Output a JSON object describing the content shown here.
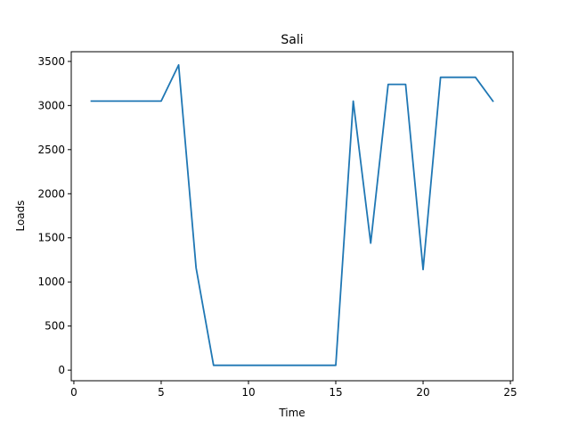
{
  "chart_data": {
    "type": "line",
    "title": "Sali",
    "xlabel": "Time",
    "ylabel": "Loads",
    "xlim": [
      -0.15,
      25.15
    ],
    "ylim": [
      -120,
      3610
    ],
    "xticks": [
      0,
      5,
      10,
      15,
      20,
      25
    ],
    "yticks": [
      0,
      500,
      1000,
      1500,
      2000,
      2500,
      3000,
      3500
    ],
    "grid": false,
    "series": [
      {
        "color": "#1f77b4",
        "x": [
          1,
          2,
          3,
          4,
          5,
          6,
          7,
          8,
          9,
          10,
          11,
          12,
          13,
          14,
          15,
          16,
          17,
          18,
          19,
          20,
          21,
          22,
          23,
          24
        ],
        "y": [
          3050,
          3050,
          3050,
          3050,
          3050,
          3460,
          1160,
          55,
          55,
          55,
          55,
          55,
          55,
          55,
          55,
          3050,
          1440,
          3240,
          3240,
          1140,
          3320,
          3320,
          3320,
          3050
        ]
      }
    ]
  }
}
